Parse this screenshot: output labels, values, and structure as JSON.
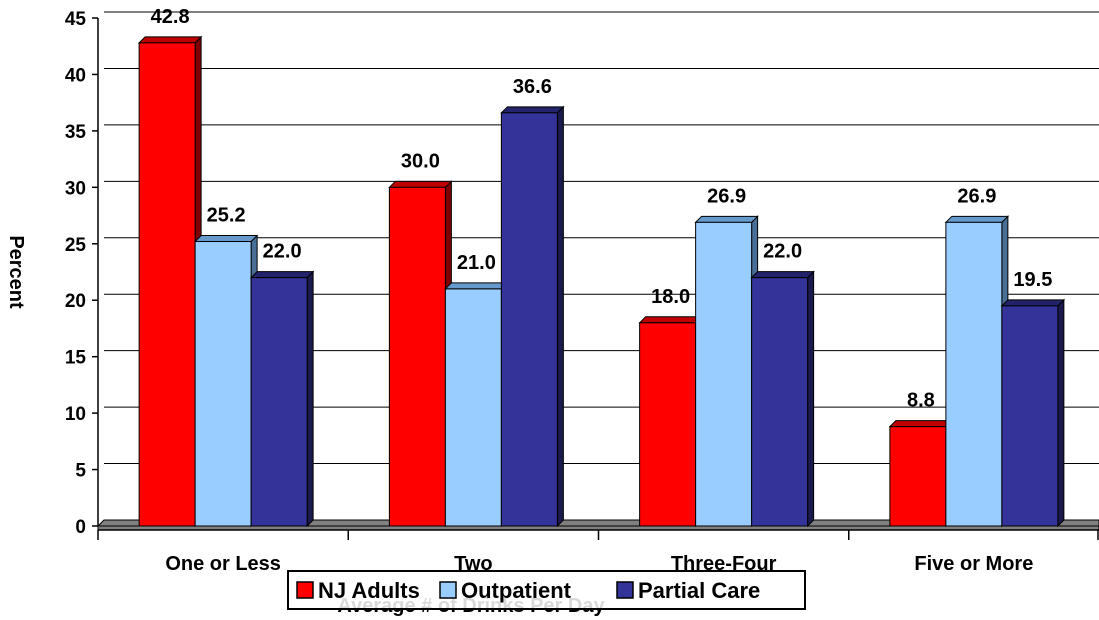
{
  "chart_data": {
    "type": "bar",
    "title": "",
    "xlabel": "Average # of Drinks Per Day",
    "ylabel": "Percent",
    "categories": [
      "One or Less",
      "Two",
      "Three-Four",
      "Five or More"
    ],
    "series": [
      {
        "name": "NJ Adults",
        "values": [
          42.8,
          30.0,
          18.0,
          8.8
        ],
        "labels": [
          "42.8",
          "30.0",
          "18.0",
          "8.8"
        ],
        "color": "#ff0000",
        "top_color": "#c00000",
        "side_color": "#800000"
      },
      {
        "name": "Outpatient",
        "values": [
          25.2,
          21.0,
          26.9,
          26.9
        ],
        "labels": [
          "25.2",
          "21.0",
          "26.9",
          "26.9"
        ],
        "color": "#99ccff",
        "top_color": "#6699cc",
        "side_color": "#4a6f96"
      },
      {
        "name": "Partial Care",
        "values": [
          22.0,
          36.6,
          22.0,
          19.5
        ],
        "labels": [
          "22.0",
          "36.6",
          "22.0",
          "19.5"
        ],
        "color": "#333399",
        "top_color": "#23236b",
        "side_color": "#1a1a4d"
      }
    ],
    "ylim": [
      0,
      45
    ],
    "yticks": [
      0,
      5,
      10,
      15,
      20,
      25,
      30,
      35,
      40,
      45
    ],
    "grid": true,
    "legend_position": "bottom"
  }
}
